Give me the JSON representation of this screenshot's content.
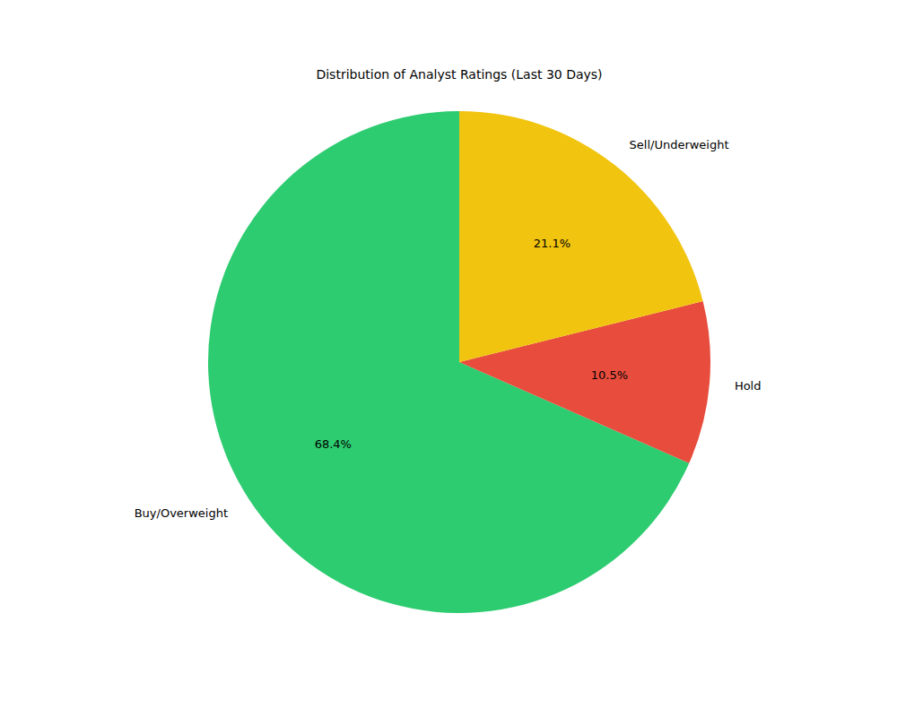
{
  "chart_data": {
    "type": "pie",
    "title": "Distribution of Analyst Ratings (Last 30 Days)",
    "categories": [
      "Buy/Overweight",
      "Hold",
      "Sell/Underweight"
    ],
    "values": [
      68.4,
      10.5,
      21.1
    ],
    "value_labels": [
      "68.4%",
      "10.5%",
      "21.1%"
    ],
    "colors": [
      "#2ecc71",
      "#e74c3c",
      "#f1c40f"
    ],
    "data_labels": true
  }
}
